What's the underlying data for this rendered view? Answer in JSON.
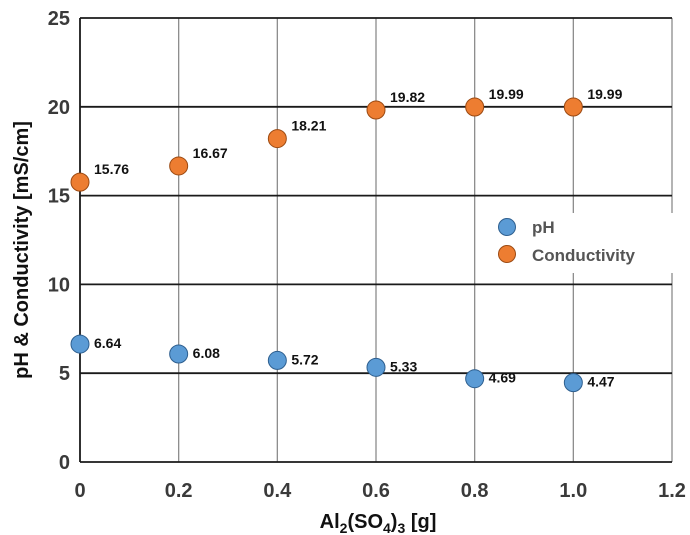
{
  "chart_data": {
    "type": "scatter",
    "x": [
      0,
      0.2,
      0.4,
      0.6,
      0.8,
      1.0
    ],
    "series": [
      {
        "name": "pH",
        "values": [
          6.64,
          6.08,
          5.72,
          5.33,
          4.69,
          4.47
        ],
        "labels": [
          "6.64",
          "6.08",
          "5.72",
          "5.33",
          "4.69",
          "4.47"
        ],
        "color": "#5b9bd5"
      },
      {
        "name": "Conductivity",
        "values": [
          15.76,
          16.67,
          18.21,
          19.82,
          19.99,
          19.99
        ],
        "labels": [
          "15.76",
          "16.67",
          "18.21",
          "19.82",
          "19.99",
          "19.99"
        ],
        "color": "#ed7d31"
      }
    ],
    "xlim": [
      0,
      1.2
    ],
    "ylim": [
      0,
      25
    ],
    "xticks": [
      "0",
      "0.2",
      "0.4",
      "0.6",
      "0.8",
      "1.0",
      "1.2"
    ],
    "yticks": [
      "0",
      "5",
      "10",
      "15",
      "20",
      "25"
    ],
    "xlabel": {
      "pre": "Al",
      "sub1": "2",
      "mid": "(SO",
      "sub2": "4",
      "post1": ")",
      "sub3": "3",
      "post2": " [g]"
    },
    "ylabel": "pH & Conductivity  [mS/cm]",
    "grid": true,
    "legend_position": "right-middle"
  }
}
